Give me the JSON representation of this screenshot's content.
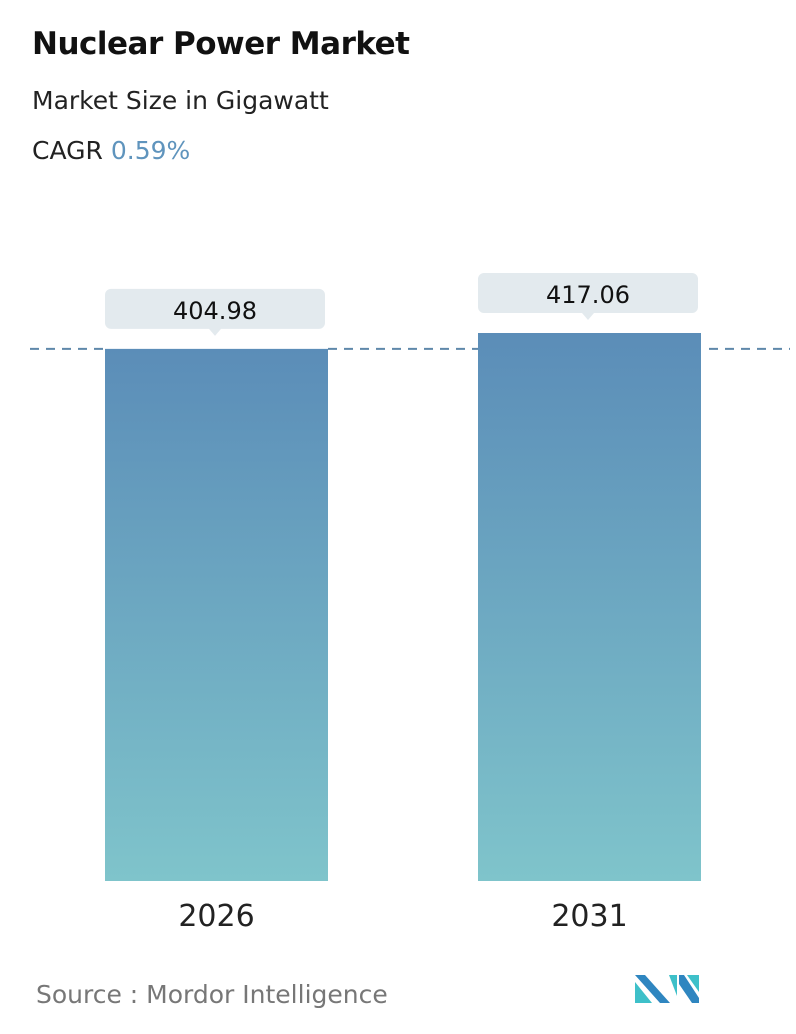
{
  "header": {
    "title": "Nuclear Power Market",
    "subtitle": "Market Size in Gigawatt",
    "cagr_label": "CAGR",
    "cagr_value": "0.59%"
  },
  "chart_data": {
    "type": "bar",
    "categories": [
      "2026",
      "2031"
    ],
    "values": [
      404.98,
      417.06
    ],
    "value_labels": [
      "404.98",
      "417.06"
    ],
    "title": "Nuclear Power Market",
    "subtitle": "Market Size in Gigawatt",
    "ylim": [
      0,
      417.06
    ],
    "grid": false,
    "reference_line": "dashed at 2026 value",
    "colors": {
      "bar_top": "#5b8db8",
      "bar_bottom": "#7fc4cb",
      "label_box": "#e3eaee",
      "dashed_line": "#5f88aa",
      "accent": "#5f94bd"
    }
  },
  "footer": {
    "source": "Source :  Mordor Intelligence",
    "logo": "Mordor Intelligence logo"
  }
}
